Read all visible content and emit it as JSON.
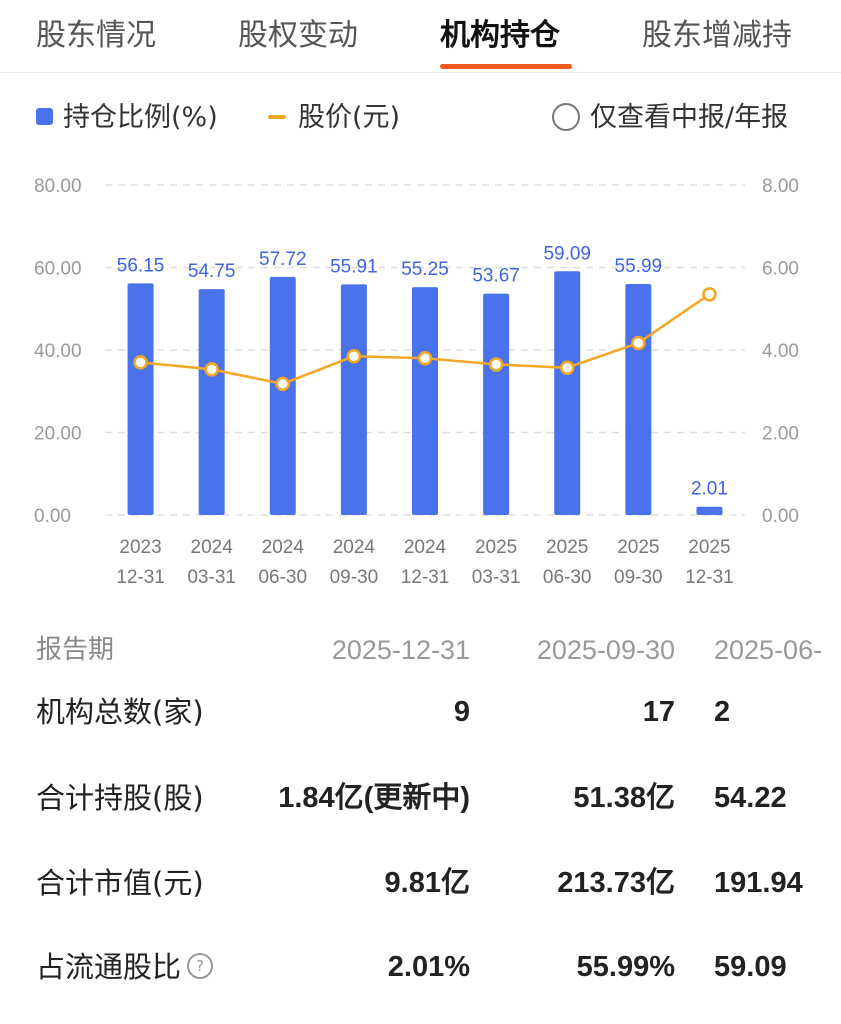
{
  "tabs": [
    {
      "label": "股东情况",
      "active": false
    },
    {
      "label": "股权变动",
      "active": false
    },
    {
      "label": "机构持仓",
      "active": true
    },
    {
      "label": "股东增减持",
      "active": false
    }
  ],
  "legend": {
    "bar_label": "持仓比例(%)",
    "line_label": "股价(元)",
    "toggle_label": "仅查看中报/年报",
    "toggle_checked": false
  },
  "colors": {
    "accent": "#ef5a1c",
    "bar": "#4a72ea",
    "line": "#f5a623",
    "value_label": "#3c64e3"
  },
  "chart_data": {
    "type": "bar",
    "categories": [
      [
        "2023",
        "12-31"
      ],
      [
        "2024",
        "03-31"
      ],
      [
        "2024",
        "06-30"
      ],
      [
        "2024",
        "09-30"
      ],
      [
        "2024",
        "12-31"
      ],
      [
        "2025",
        "03-31"
      ],
      [
        "2025",
        "06-30"
      ],
      [
        "2025",
        "09-30"
      ],
      [
        "2025",
        "12-31"
      ]
    ],
    "series": [
      {
        "name": "持仓比例(%)",
        "type": "bar",
        "axis": "left",
        "values": [
          56.15,
          54.75,
          57.72,
          55.91,
          55.25,
          53.67,
          59.09,
          55.99,
          2.01
        ]
      },
      {
        "name": "股价(元)",
        "type": "line",
        "axis": "right",
        "values": [
          3.7,
          3.53,
          3.18,
          3.85,
          3.8,
          3.65,
          3.57,
          4.17,
          5.35
        ]
      }
    ],
    "y_left": {
      "min": 0,
      "max": 80,
      "ticks": [
        "0.00",
        "20.00",
        "40.00",
        "60.00",
        "80.00"
      ]
    },
    "y_right": {
      "min": 0,
      "max": 8,
      "ticks": [
        "0.00",
        "2.00",
        "4.00",
        "6.00",
        "8.00"
      ]
    },
    "grid": true
  },
  "table": {
    "header": {
      "label": "报告期",
      "cols": [
        "2025-12-31",
        "2025-09-30",
        "2025-06-"
      ]
    },
    "rows": [
      {
        "label": "机构总数(家)",
        "cols": [
          "9",
          "17",
          "2"
        ],
        "help": false
      },
      {
        "label": "合计持股(股)",
        "cols": [
          "1.84亿(更新中)",
          "51.38亿",
          "54.22"
        ],
        "help": false
      },
      {
        "label": "合计市值(元)",
        "cols": [
          "9.81亿",
          "213.73亿",
          "191.94"
        ],
        "help": false
      },
      {
        "label": "占流通股比",
        "cols": [
          "2.01%",
          "55.99%",
          "59.09"
        ],
        "help": true,
        "help_icon": "question-circle-icon",
        "help_glyph": "?"
      }
    ]
  }
}
